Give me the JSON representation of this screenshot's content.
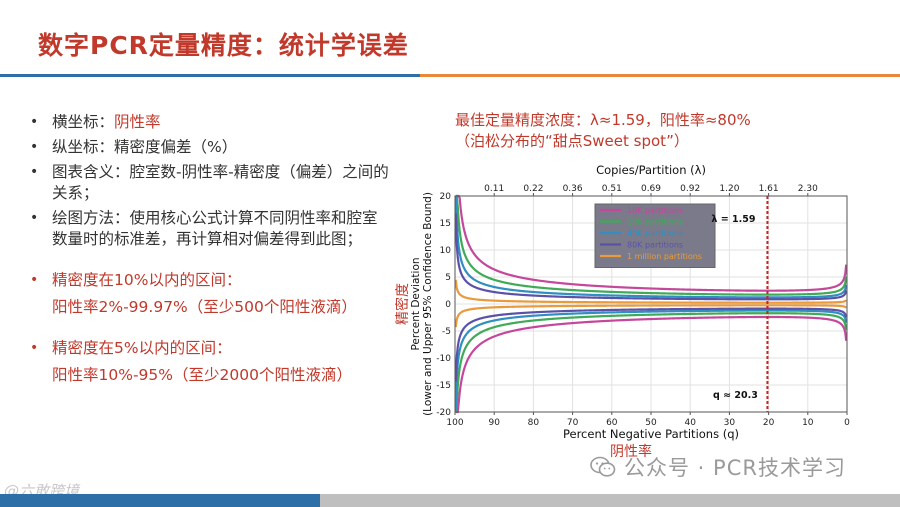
{
  "slide": {
    "title": "数字PCR定量精度：统计学误差"
  },
  "notes": {
    "bullets": [
      {
        "prefix": "横坐标：",
        "value": "阴性率"
      },
      {
        "prefix": "纵坐标：",
        "value": "精密度偏差（%）"
      },
      {
        "prefix": "图表含义：",
        "value": "腔室数-阴性率-精密度（偏差）之间的关系；"
      },
      {
        "prefix": "绘图方法：",
        "value": "使用核心公式计算不同阴性率和腔室数量时的标准差，再计算相对偏差得到此图；"
      }
    ],
    "highlights": [
      {
        "heading": "精密度在10%以内的区间：",
        "detail": "阳性率2%-99.97%（至少500个阳性液滴）"
      },
      {
        "heading": "精密度在5%以内的区间：",
        "detail": "阳性率10%-95%（至少2000个阳性液滴）"
      }
    ]
  },
  "annotation": {
    "line1": "最佳定量精度浓度：λ≈1.59，阳性率≈80%",
    "line2": "（泊松分布的“甜点Sweet spot”）"
  },
  "chart_data": {
    "type": "line",
    "xlabel": "Percent Negative Partitions (q)",
    "x2label": "Copies/Partition (λ)",
    "ylabel_line1": "Percent Deviation",
    "ylabel_line2": "(Lower and Upper 95% Confidence Bound)",
    "x_label_cn": "阴性率",
    "y_label_cn": "精密度",
    "xlim": [
      100,
      0
    ],
    "ylim": [
      -20,
      20
    ],
    "x_ticks": [
      100,
      90,
      80,
      70,
      60,
      50,
      40,
      30,
      20,
      10,
      0
    ],
    "y_ticks": [
      20,
      15,
      10,
      5,
      0,
      -5,
      -10,
      -15,
      -20
    ],
    "top_ticks": [
      {
        "label": "0.11",
        "q": 90
      },
      {
        "label": "0.22",
        "q": 80
      },
      {
        "label": "0.36",
        "q": 70
      },
      {
        "label": "0.51",
        "q": 60
      },
      {
        "label": "0.69",
        "q": 50
      },
      {
        "label": "0.92",
        "q": 40
      },
      {
        "label": "1.20",
        "q": 30
      },
      {
        "label": "1.61",
        "q": 20
      },
      {
        "label": "2.30",
        "q": 10
      }
    ],
    "optimum_q": 20.3,
    "optimum_lambda_label": "λ = 1.59",
    "optimum_q_label": "q ≈ 20.3",
    "series": [
      {
        "name": "10K partitions",
        "N": 10000,
        "color": "#c4479c"
      },
      {
        "name": "20K partitions",
        "N": 20000,
        "color": "#3faa57"
      },
      {
        "name": "40K partitions",
        "N": 40000,
        "color": "#2f8fc0"
      },
      {
        "name": "80K partitions",
        "N": 80000,
        "color": "#5b52a8"
      },
      {
        "name": "1 million partitions",
        "N": 1000000,
        "color": "#e89a3c"
      }
    ]
  },
  "watermark": {
    "text": "公众号 · PCR技术学习",
    "corner_text": "@六敢跨境"
  },
  "colors": {
    "accent_red": "#c0392b",
    "rule_blue": "#2e6fa8",
    "rule_orange": "#e8883a",
    "optimum_line": "#cc2222",
    "legend_bg": "#7a7a8a"
  }
}
